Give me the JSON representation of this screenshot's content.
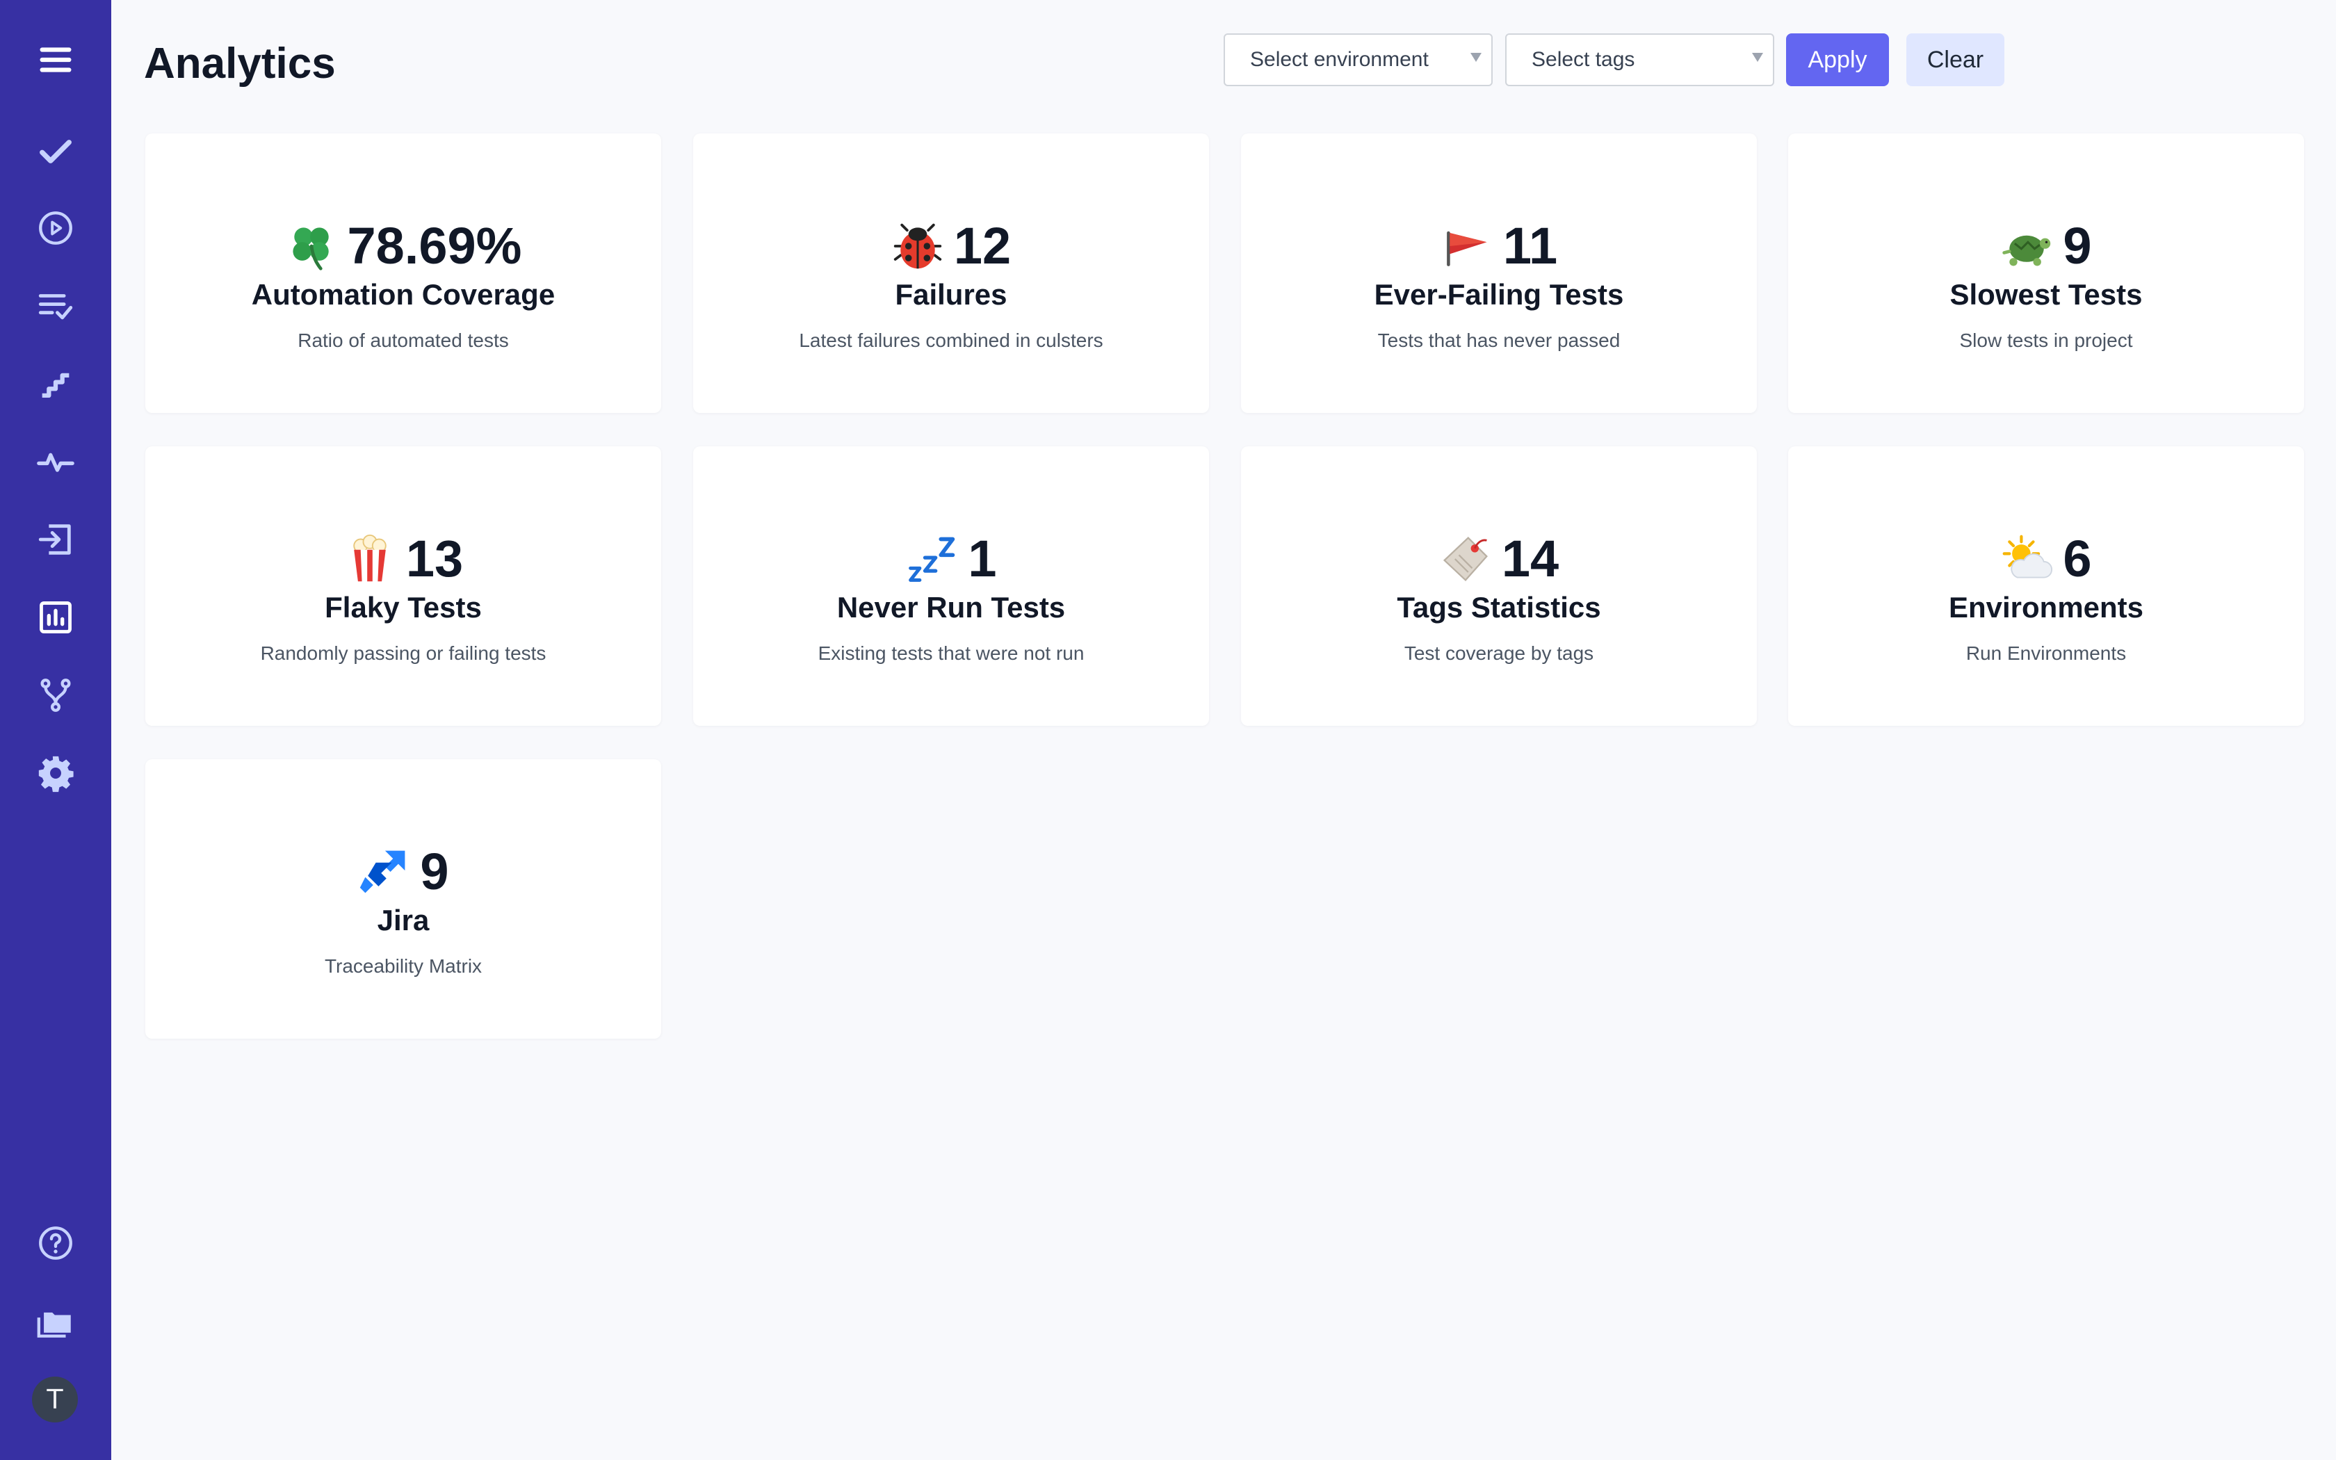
{
  "sidebar": {
    "items": [
      {
        "name": "menu",
        "icon": "hamburger-menu-icon"
      },
      {
        "name": "tests",
        "icon": "checkmark-icon"
      },
      {
        "name": "runs",
        "icon": "play-circle-icon"
      },
      {
        "name": "plans",
        "icon": "checklist-icon"
      },
      {
        "name": "steps",
        "icon": "stairs-icon"
      },
      {
        "name": "pulse",
        "icon": "pulse-icon"
      },
      {
        "name": "imports",
        "icon": "import-icon"
      },
      {
        "name": "analytics",
        "icon": "bar-chart-icon"
      },
      {
        "name": "branches",
        "icon": "branch-icon"
      },
      {
        "name": "settings",
        "icon": "gear-icon"
      },
      {
        "name": "help",
        "icon": "help-circle-icon"
      },
      {
        "name": "projects",
        "icon": "folders-icon"
      }
    ],
    "avatar_initial": "T",
    "background": "#3730a3"
  },
  "header": {
    "title": "Analytics",
    "environment_select": {
      "placeholder": "Select environment"
    },
    "tags_select": {
      "placeholder": "Select tags"
    },
    "apply_label": "Apply",
    "clear_label": "Clear"
  },
  "cards": [
    {
      "icon": "clover-icon",
      "value": "78.69%",
      "title": "Automation Coverage",
      "subtitle": "Ratio of automated tests"
    },
    {
      "icon": "ladybug-icon",
      "value": "12",
      "title": "Failures",
      "subtitle": "Latest failures combined in culsters"
    },
    {
      "icon": "red-flag-icon",
      "value": "11",
      "title": "Ever-Failing Tests",
      "subtitle": "Tests that has never passed"
    },
    {
      "icon": "turtle-icon",
      "value": "9",
      "title": "Slowest Tests",
      "subtitle": "Slow tests in project"
    },
    {
      "icon": "popcorn-icon",
      "value": "13",
      "title": "Flaky Tests",
      "subtitle": "Randomly passing or failing tests"
    },
    {
      "icon": "zzz-icon",
      "value": "1",
      "title": "Never Run Tests",
      "subtitle": "Existing tests that were not run"
    },
    {
      "icon": "tag-label-icon",
      "value": "14",
      "title": "Tags Statistics",
      "subtitle": "Test coverage by tags"
    },
    {
      "icon": "sun-cloud-icon",
      "value": "6",
      "title": "Environments",
      "subtitle": "Run Environments"
    },
    {
      "icon": "jira-icon",
      "value": "9",
      "title": "Jira",
      "subtitle": "Traceability Matrix"
    }
  ],
  "colors": {
    "accent": "#6366f1",
    "accent_light": "#e0e7ff",
    "background": "#f8f9fc",
    "card": "#ffffff"
  }
}
